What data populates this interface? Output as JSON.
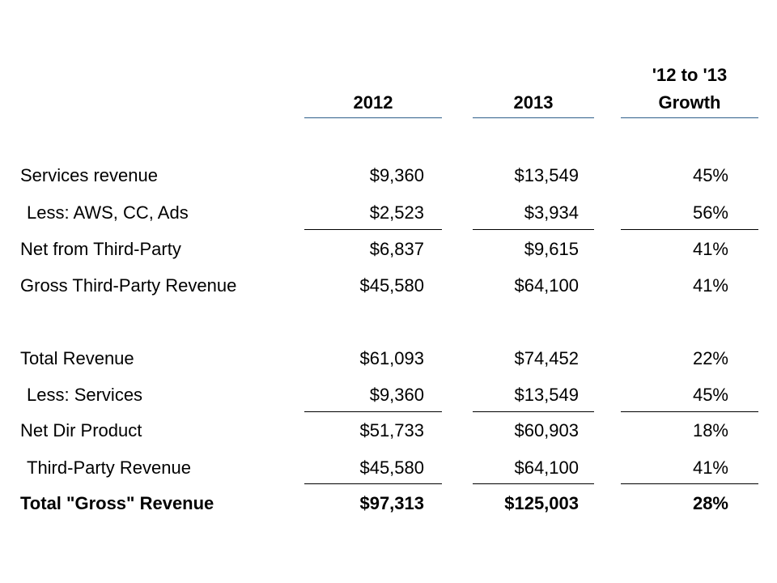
{
  "table": {
    "headers": {
      "col1": "2012",
      "col2": "2013",
      "col3_line1": "'12 to '13",
      "col3_line2": "Growth"
    },
    "rows": [
      {
        "label": "Services revenue",
        "v2012": "$9,360",
        "v2013": "$13,549",
        "growth": "45%"
      },
      {
        "label": "Less: AWS, CC, Ads",
        "v2012": "$2,523",
        "v2013": "$3,934",
        "growth": "56%"
      },
      {
        "label": "Net from Third-Party",
        "v2012": "$6,837",
        "v2013": "$9,615",
        "growth": "41%"
      },
      {
        "label": "Gross Third-Party Revenue",
        "v2012": "$45,580",
        "v2013": "$64,100",
        "growth": "41%"
      },
      {
        "label": "Total Revenue",
        "v2012": "$61,093",
        "v2013": "$74,452",
        "growth": "22%"
      },
      {
        "label": "Less: Services",
        "v2012": "$9,360",
        "v2013": "$13,549",
        "growth": "45%"
      },
      {
        "label": "Net Dir Product",
        "v2012": "$51,733",
        "v2013": "$60,903",
        "growth": "18%"
      },
      {
        "label": "Third-Party Revenue",
        "v2012": "$45,580",
        "v2013": "$64,100",
        "growth": "41%"
      },
      {
        "label": "Total \"Gross\" Revenue",
        "v2012": "$97,313",
        "v2013": "$125,003",
        "growth": "28%"
      }
    ]
  },
  "colors": {
    "header_rule": "#2e5f8a",
    "row_rule": "#000000",
    "text": "#000000",
    "background": "#ffffff"
  }
}
